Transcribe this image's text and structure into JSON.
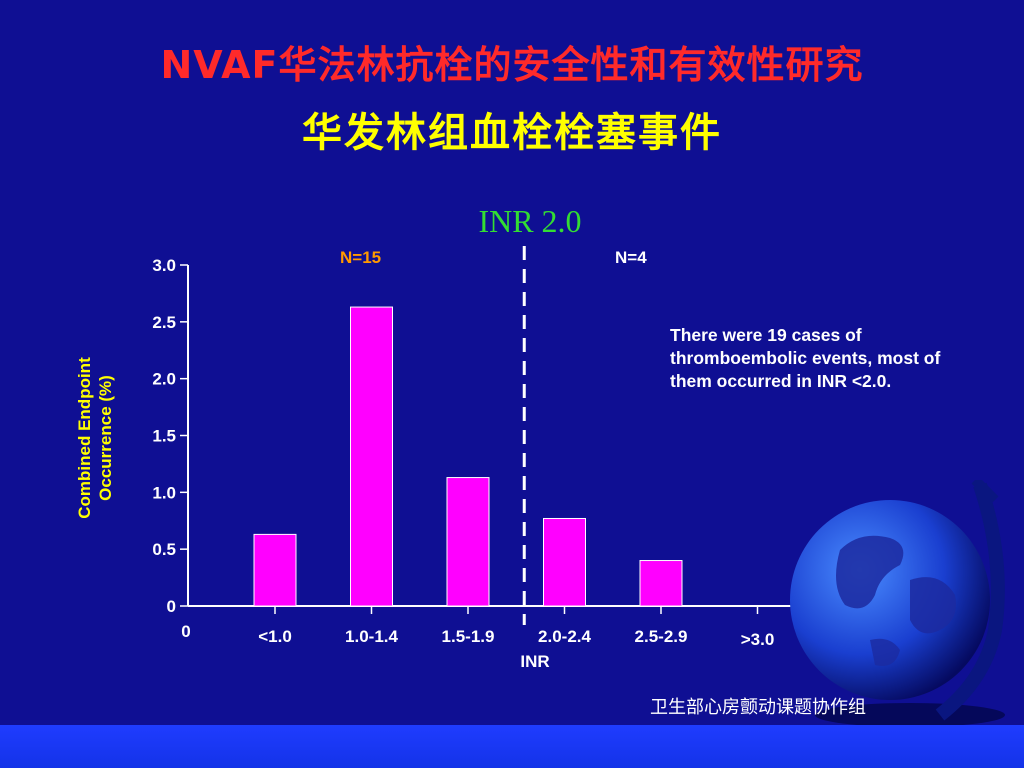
{
  "header": {
    "title": "NVAF华法林抗栓的安全性和有效性研究",
    "subtitle": "华发林组血栓栓塞事件"
  },
  "annotations": {
    "threshold_label": "INR 2.0",
    "n_left": "N=15",
    "n_right": "N=4",
    "note": "There were 19 cases of thromboembolic events, most  of them occurred in INR <2.0."
  },
  "footer": {
    "credit": "卫生部心房颤动课题协作组"
  },
  "colors": {
    "background": "#0f0f93",
    "bar_fill": "#ff00ff",
    "title": "#ff2a2a",
    "subtitle": "#ffff00",
    "threshold_label": "#33dd33",
    "axis_label": "#ffff00"
  },
  "chart_data": {
    "type": "bar",
    "categories": [
      "<1.0",
      "1.0-1.4",
      "1.5-1.9",
      "2.0-2.4",
      "2.5-2.9",
      ">3.0"
    ],
    "values": [
      0.63,
      2.63,
      1.13,
      0.77,
      0.4,
      0
    ],
    "xlabel": "INR",
    "ylabel": "Combined Endpoint Occurrence (%)",
    "ylim": [
      0,
      3.0
    ],
    "yticks": [
      0,
      0.5,
      1.0,
      1.5,
      2.0,
      2.5,
      3.0
    ],
    "ytick_labels": [
      "0",
      "0.5",
      "1.0",
      "1.5",
      "2.0",
      "2.5",
      "3.0"
    ],
    "x_origin_label": "0",
    "threshold_line": "between 1.5-1.9 and 2.0-2.4",
    "grid": false,
    "legend": "none"
  }
}
